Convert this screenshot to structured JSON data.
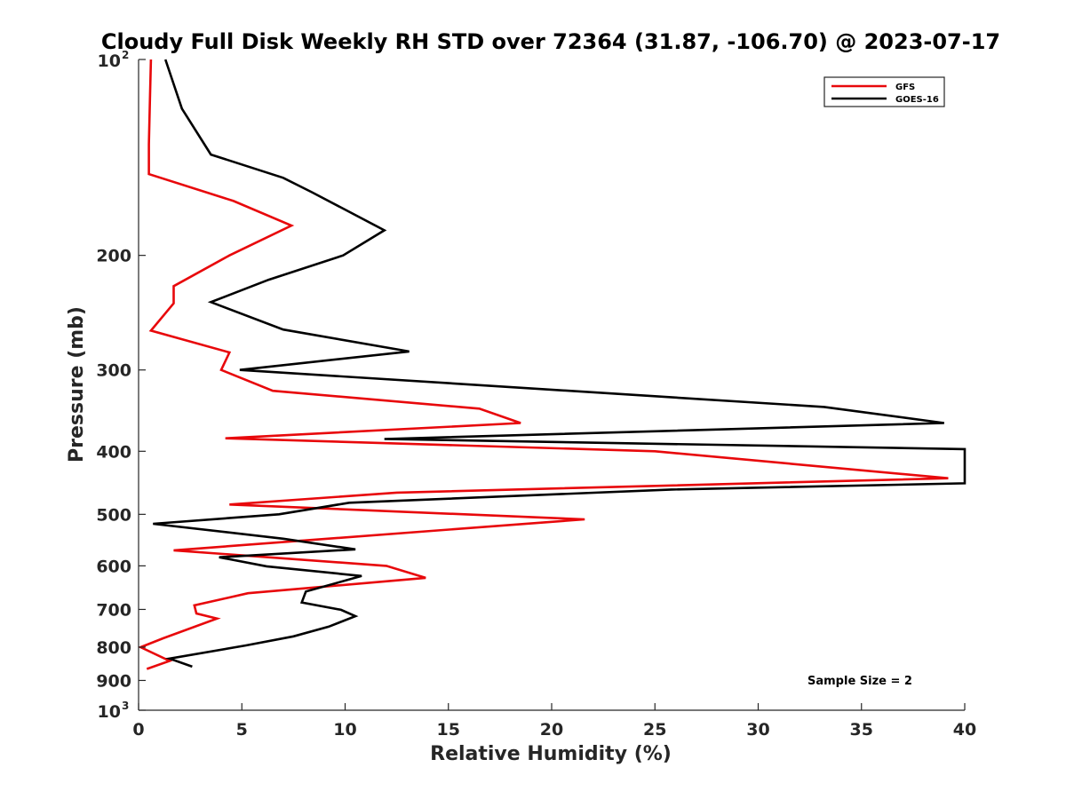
{
  "chart_data": {
    "type": "line",
    "title": "Cloudy Full Disk Weekly RH STD over 72364 (31.87, -106.70) @ 2023-07-17",
    "xlabel": "Relative Humidity (%)",
    "ylabel": "Pressure (mb)",
    "xlim": [
      0,
      40
    ],
    "ylim": [
      100,
      1000
    ],
    "yscale": "log",
    "y_reversed": true,
    "grid": false,
    "x_ticks": [
      0,
      5,
      10,
      15,
      20,
      25,
      30,
      35,
      40
    ],
    "y_ticks": [
      {
        "value": 100,
        "base": "10",
        "exp": "2"
      },
      {
        "value": 200,
        "label": "200"
      },
      {
        "value": 300,
        "label": "300"
      },
      {
        "value": 400,
        "label": "400"
      },
      {
        "value": 500,
        "label": "500"
      },
      {
        "value": 600,
        "label": "600"
      },
      {
        "value": 700,
        "label": "700"
      },
      {
        "value": 800,
        "label": "800"
      },
      {
        "value": 900,
        "label": "900"
      },
      {
        "value": 1000,
        "base": "10",
        "exp": "3"
      }
    ],
    "legend": {
      "position": "top-right"
    },
    "series": [
      {
        "name": "GFS",
        "color": "#e8080b",
        "points": [
          [
            0.6,
            100
          ],
          [
            0.55,
            115
          ],
          [
            0.5,
            135
          ],
          [
            0.5,
            150
          ],
          [
            4.6,
            165
          ],
          [
            7.4,
            180
          ],
          [
            4.4,
            200
          ],
          [
            1.7,
            223
          ],
          [
            1.7,
            237
          ],
          [
            0.6,
            261
          ],
          [
            4.4,
            282
          ],
          [
            4.0,
            300
          ],
          [
            6.5,
            323
          ],
          [
            16.5,
            344
          ],
          [
            18.5,
            362
          ],
          [
            4.2,
            382
          ],
          [
            25.0,
            400
          ],
          [
            39.2,
            440
          ],
          [
            12.5,
            463
          ],
          [
            4.4,
            483
          ],
          [
            21.6,
            509
          ],
          [
            1.7,
            568
          ],
          [
            12.0,
            600
          ],
          [
            13.9,
            626
          ],
          [
            5.3,
            661
          ],
          [
            2.7,
            690
          ],
          [
            2.8,
            710
          ],
          [
            3.8,
            723
          ],
          [
            1.2,
            775
          ],
          [
            0.1,
            800
          ],
          [
            1.5,
            840
          ],
          [
            0.4,
            864
          ]
        ]
      },
      {
        "name": "GOES-16",
        "color": "#000000",
        "points": [
          [
            1.3,
            100
          ],
          [
            2.1,
            119
          ],
          [
            3.5,
            140
          ],
          [
            7.0,
            152
          ],
          [
            8.4,
            160
          ],
          [
            11.9,
            183
          ],
          [
            9.9,
            200
          ],
          [
            6.3,
            218
          ],
          [
            3.5,
            236
          ],
          [
            7.0,
            260
          ],
          [
            13.1,
            281
          ],
          [
            4.9,
            300
          ],
          [
            33.2,
            342
          ],
          [
            39.0,
            362
          ],
          [
            11.9,
            383
          ],
          [
            40.0,
            397
          ],
          [
            40.0,
            448
          ],
          [
            25.8,
            458
          ],
          [
            10.2,
            480
          ],
          [
            6.8,
            500
          ],
          [
            0.7,
            517
          ],
          [
            7.0,
            545
          ],
          [
            10.5,
            566
          ],
          [
            3.9,
            582
          ],
          [
            6.2,
            601
          ],
          [
            10.8,
            622
          ],
          [
            8.1,
            657
          ],
          [
            7.9,
            683
          ],
          [
            9.8,
            701
          ],
          [
            10.5,
            717
          ],
          [
            9.2,
            744
          ],
          [
            7.5,
            770
          ],
          [
            5.2,
            795
          ],
          [
            1.5,
            833
          ],
          [
            2.6,
            857
          ]
        ]
      }
    ],
    "annotation": "Sample Size = 2"
  }
}
